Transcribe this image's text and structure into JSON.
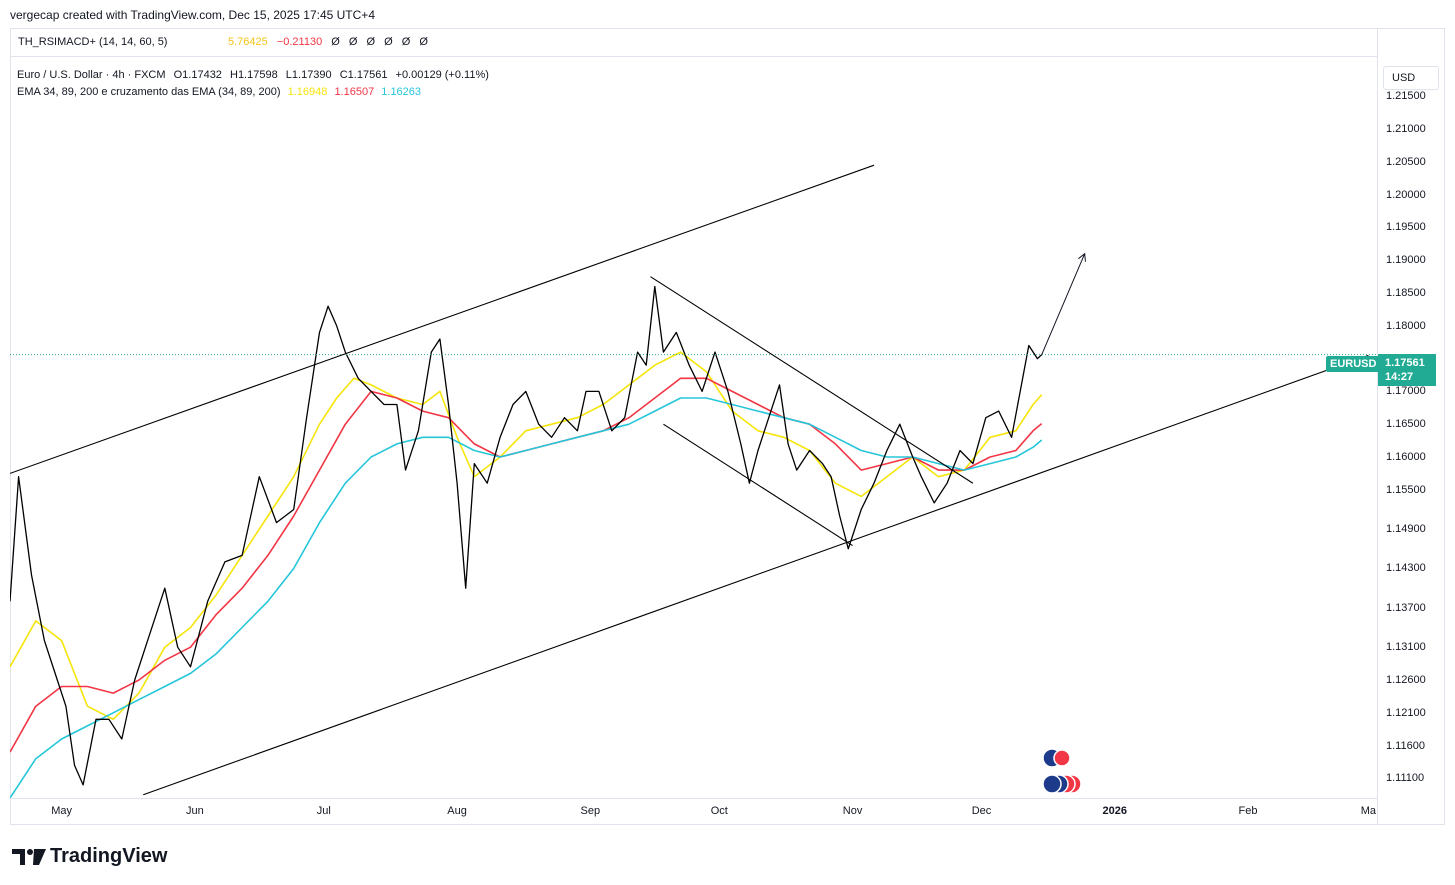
{
  "attribution": "vergecap created with TradingView.com, Dec 15, 2025 17:45 UTC+4",
  "indicator": {
    "name": "TH_RSIMACD+ (14, 14, 60, 5)",
    "value1": "5.76425",
    "value2": "−0.21130",
    "zeros": [
      "Ø",
      "Ø",
      "Ø",
      "Ø",
      "Ø",
      "Ø"
    ],
    "value1_color": "#f5c518",
    "value2_color": "#f23645"
  },
  "legend": {
    "symbol": "Euro / U.S. Dollar · 4h · FXCM",
    "open": "O1.17432",
    "high": "H1.17598",
    "low": "L1.17390",
    "close": "C1.17561",
    "change": "+0.00129 (+0.11%)",
    "ema_label": "EMA 34, 89, 200 e cruzamento das EMA (34, 89, 200)",
    "ema34": "1.16948",
    "ema89": "1.16507",
    "ema200": "1.16263",
    "ema34_color": "#f5e50a",
    "ema89_color": "#f23645",
    "ema200_color": "#26c6da"
  },
  "currency_button": "USD",
  "price_tag": {
    "symbol": "EURUSD",
    "price": "1.17561",
    "countdown": "14:27",
    "color": "#22ab94"
  },
  "logo_text": "TradingView",
  "chart_data": {
    "type": "line",
    "symbol": "EURUSD",
    "timeframe": "4h",
    "y_axis": {
      "ticks": [
        "1.21500",
        "1.21000",
        "1.20500",
        "1.20000",
        "1.19500",
        "1.19000",
        "1.18500",
        "1.18000",
        "1.17500",
        "1.17000",
        "1.16500",
        "1.16000",
        "1.15500",
        "1.14900",
        "1.14300",
        "1.13700",
        "1.13100",
        "1.12600",
        "1.12100",
        "1.11600",
        "1.11100"
      ],
      "tick_values": [
        1.215,
        1.21,
        1.205,
        1.2,
        1.195,
        1.19,
        1.185,
        1.18,
        1.175,
        1.17,
        1.165,
        1.16,
        1.155,
        1.149,
        1.143,
        1.137,
        1.131,
        1.126,
        1.121,
        1.116,
        1.111
      ],
      "range": [
        1.108,
        1.221
      ]
    },
    "x_axis": {
      "ticks": [
        "May",
        "Jun",
        "Jul",
        "Aug",
        "Sep",
        "Oct",
        "Nov",
        "Dec",
        "2026",
        "Feb",
        "Ma"
      ],
      "bold_ticks": [
        "2026"
      ],
      "tick_days": [
        0,
        31,
        61,
        92,
        123,
        153,
        184,
        214,
        245,
        276,
        304
      ],
      "range_days": [
        -12,
        306
      ]
    },
    "series": [
      {
        "name": "EURUSD",
        "color": "#000000",
        "points": [
          [
            -12,
            1.138
          ],
          [
            -10,
            1.157
          ],
          [
            -7,
            1.142
          ],
          [
            -4,
            1.132
          ],
          [
            -1,
            1.126
          ],
          [
            1,
            1.122
          ],
          [
            3,
            1.113
          ],
          [
            5,
            1.11
          ],
          [
            8,
            1.12
          ],
          [
            11,
            1.12
          ],
          [
            14,
            1.117
          ],
          [
            17,
            1.126
          ],
          [
            20,
            1.132
          ],
          [
            24,
            1.14
          ],
          [
            27,
            1.131
          ],
          [
            30,
            1.128
          ],
          [
            34,
            1.138
          ],
          [
            38,
            1.144
          ],
          [
            42,
            1.145
          ],
          [
            46,
            1.157
          ],
          [
            50,
            1.15
          ],
          [
            54,
            1.152
          ],
          [
            57,
            1.166
          ],
          [
            60,
            1.179
          ],
          [
            62,
            1.183
          ],
          [
            64,
            1.18
          ],
          [
            66,
            1.176
          ],
          [
            69,
            1.172
          ],
          [
            72,
            1.17
          ],
          [
            75,
            1.168
          ],
          [
            78,
            1.168
          ],
          [
            80,
            1.158
          ],
          [
            83,
            1.164
          ],
          [
            86,
            1.176
          ],
          [
            88,
            1.178
          ],
          [
            90,
            1.168
          ],
          [
            92,
            1.156
          ],
          [
            93,
            1.148
          ],
          [
            94,
            1.14
          ],
          [
            96,
            1.159
          ],
          [
            99,
            1.156
          ],
          [
            102,
            1.163
          ],
          [
            105,
            1.168
          ],
          [
            108,
            1.17
          ],
          [
            111,
            1.165
          ],
          [
            114,
            1.163
          ],
          [
            117,
            1.166
          ],
          [
            120,
            1.164
          ],
          [
            122,
            1.17
          ],
          [
            125,
            1.17
          ],
          [
            128,
            1.164
          ],
          [
            131,
            1.166
          ],
          [
            134,
            1.176
          ],
          [
            136,
            1.174
          ],
          [
            138,
            1.186
          ],
          [
            140,
            1.176
          ],
          [
            143,
            1.179
          ],
          [
            146,
            1.174
          ],
          [
            149,
            1.17
          ],
          [
            152,
            1.176
          ],
          [
            155,
            1.17
          ],
          [
            158,
            1.162
          ],
          [
            160,
            1.156
          ],
          [
            162,
            1.161
          ],
          [
            165,
            1.167
          ],
          [
            167,
            1.171
          ],
          [
            169,
            1.162
          ],
          [
            171,
            1.158
          ],
          [
            174,
            1.161
          ],
          [
            177,
            1.159
          ],
          [
            179,
            1.157
          ],
          [
            181,
            1.151
          ],
          [
            183,
            1.146
          ],
          [
            186,
            1.152
          ],
          [
            189,
            1.156
          ],
          [
            192,
            1.161
          ],
          [
            195,
            1.165
          ],
          [
            198,
            1.16
          ],
          [
            200,
            1.157
          ],
          [
            203,
            1.153
          ],
          [
            206,
            1.156
          ],
          [
            209,
            1.161
          ],
          [
            212,
            1.159
          ],
          [
            215,
            1.166
          ],
          [
            218,
            1.167
          ],
          [
            221,
            1.163
          ],
          [
            223,
            1.17
          ],
          [
            225,
            1.177
          ],
          [
            227,
            1.175
          ],
          [
            228,
            1.1756
          ]
        ]
      },
      {
        "name": "EMA 34",
        "color": "#f5e50a",
        "points": [
          [
            -12,
            1.128
          ],
          [
            -6,
            1.135
          ],
          [
            0,
            1.132
          ],
          [
            6,
            1.122
          ],
          [
            12,
            1.12
          ],
          [
            18,
            1.124
          ],
          [
            24,
            1.131
          ],
          [
            30,
            1.134
          ],
          [
            36,
            1.139
          ],
          [
            42,
            1.145
          ],
          [
            48,
            1.151
          ],
          [
            54,
            1.157
          ],
          [
            60,
            1.165
          ],
          [
            64,
            1.169
          ],
          [
            68,
            1.172
          ],
          [
            72,
            1.171
          ],
          [
            78,
            1.169
          ],
          [
            84,
            1.168
          ],
          [
            88,
            1.17
          ],
          [
            92,
            1.163
          ],
          [
            96,
            1.157
          ],
          [
            102,
            1.16
          ],
          [
            108,
            1.164
          ],
          [
            114,
            1.165
          ],
          [
            120,
            1.166
          ],
          [
            126,
            1.168
          ],
          [
            132,
            1.171
          ],
          [
            138,
            1.174
          ],
          [
            144,
            1.176
          ],
          [
            150,
            1.173
          ],
          [
            156,
            1.167
          ],
          [
            162,
            1.164
          ],
          [
            168,
            1.163
          ],
          [
            174,
            1.161
          ],
          [
            180,
            1.156
          ],
          [
            186,
            1.154
          ],
          [
            192,
            1.157
          ],
          [
            198,
            1.16
          ],
          [
            204,
            1.157
          ],
          [
            210,
            1.158
          ],
          [
            216,
            1.163
          ],
          [
            222,
            1.164
          ],
          [
            226,
            1.168
          ],
          [
            228,
            1.1695
          ]
        ]
      },
      {
        "name": "EMA 89",
        "color": "#f23645",
        "points": [
          [
            -12,
            1.115
          ],
          [
            -6,
            1.122
          ],
          [
            0,
            1.125
          ],
          [
            6,
            1.125
          ],
          [
            12,
            1.124
          ],
          [
            18,
            1.126
          ],
          [
            24,
            1.129
          ],
          [
            30,
            1.131
          ],
          [
            36,
            1.136
          ],
          [
            42,
            1.14
          ],
          [
            48,
            1.145
          ],
          [
            54,
            1.151
          ],
          [
            60,
            1.158
          ],
          [
            66,
            1.165
          ],
          [
            72,
            1.17
          ],
          [
            78,
            1.169
          ],
          [
            84,
            1.167
          ],
          [
            90,
            1.166
          ],
          [
            96,
            1.162
          ],
          [
            102,
            1.16
          ],
          [
            108,
            1.161
          ],
          [
            114,
            1.162
          ],
          [
            120,
            1.163
          ],
          [
            126,
            1.164
          ],
          [
            132,
            1.166
          ],
          [
            138,
            1.169
          ],
          [
            144,
            1.172
          ],
          [
            150,
            1.172
          ],
          [
            156,
            1.17
          ],
          [
            162,
            1.168
          ],
          [
            168,
            1.166
          ],
          [
            174,
            1.165
          ],
          [
            180,
            1.162
          ],
          [
            186,
            1.158
          ],
          [
            192,
            1.159
          ],
          [
            198,
            1.16
          ],
          [
            204,
            1.158
          ],
          [
            210,
            1.158
          ],
          [
            216,
            1.16
          ],
          [
            222,
            1.161
          ],
          [
            226,
            1.164
          ],
          [
            228,
            1.1651
          ]
        ]
      },
      {
        "name": "EMA 200",
        "color": "#26c6da",
        "points": [
          [
            -12,
            1.108
          ],
          [
            -6,
            1.114
          ],
          [
            0,
            1.117
          ],
          [
            6,
            1.119
          ],
          [
            12,
            1.121
          ],
          [
            18,
            1.123
          ],
          [
            24,
            1.125
          ],
          [
            30,
            1.127
          ],
          [
            36,
            1.13
          ],
          [
            42,
            1.134
          ],
          [
            48,
            1.138
          ],
          [
            54,
            1.143
          ],
          [
            60,
            1.15
          ],
          [
            66,
            1.156
          ],
          [
            72,
            1.16
          ],
          [
            78,
            1.162
          ],
          [
            84,
            1.163
          ],
          [
            90,
            1.163
          ],
          [
            96,
            1.161
          ],
          [
            102,
            1.16
          ],
          [
            108,
            1.161
          ],
          [
            114,
            1.162
          ],
          [
            120,
            1.163
          ],
          [
            126,
            1.164
          ],
          [
            132,
            1.165
          ],
          [
            138,
            1.167
          ],
          [
            144,
            1.169
          ],
          [
            150,
            1.169
          ],
          [
            156,
            1.168
          ],
          [
            162,
            1.167
          ],
          [
            168,
            1.166
          ],
          [
            174,
            1.165
          ],
          [
            180,
            1.163
          ],
          [
            186,
            1.161
          ],
          [
            192,
            1.16
          ],
          [
            198,
            1.16
          ],
          [
            204,
            1.159
          ],
          [
            210,
            1.158
          ],
          [
            216,
            1.159
          ],
          [
            222,
            1.16
          ],
          [
            226,
            1.1615
          ],
          [
            228,
            1.1626
          ]
        ]
      }
    ],
    "trendlines": [
      {
        "name": "channel-upper",
        "from": [
          -12,
          1.1575
        ],
        "to": [
          189,
          1.2045
        ]
      },
      {
        "name": "channel-lower",
        "from": [
          19,
          1.1085
        ],
        "to": [
          304,
          1.1755
        ]
      },
      {
        "name": "flag-upper",
        "from": [
          137,
          1.1875
        ],
        "to": [
          212,
          1.156
        ]
      },
      {
        "name": "flag-lower",
        "from": [
          140,
          1.165
        ],
        "to": [
          184,
          1.1465
        ]
      }
    ],
    "projection_arrow": {
      "from": [
        228,
        1.1756
      ],
      "to": [
        238,
        1.191
      ]
    },
    "current_price_line": 1.17561,
    "grid": false,
    "legend_position": "top-left"
  }
}
